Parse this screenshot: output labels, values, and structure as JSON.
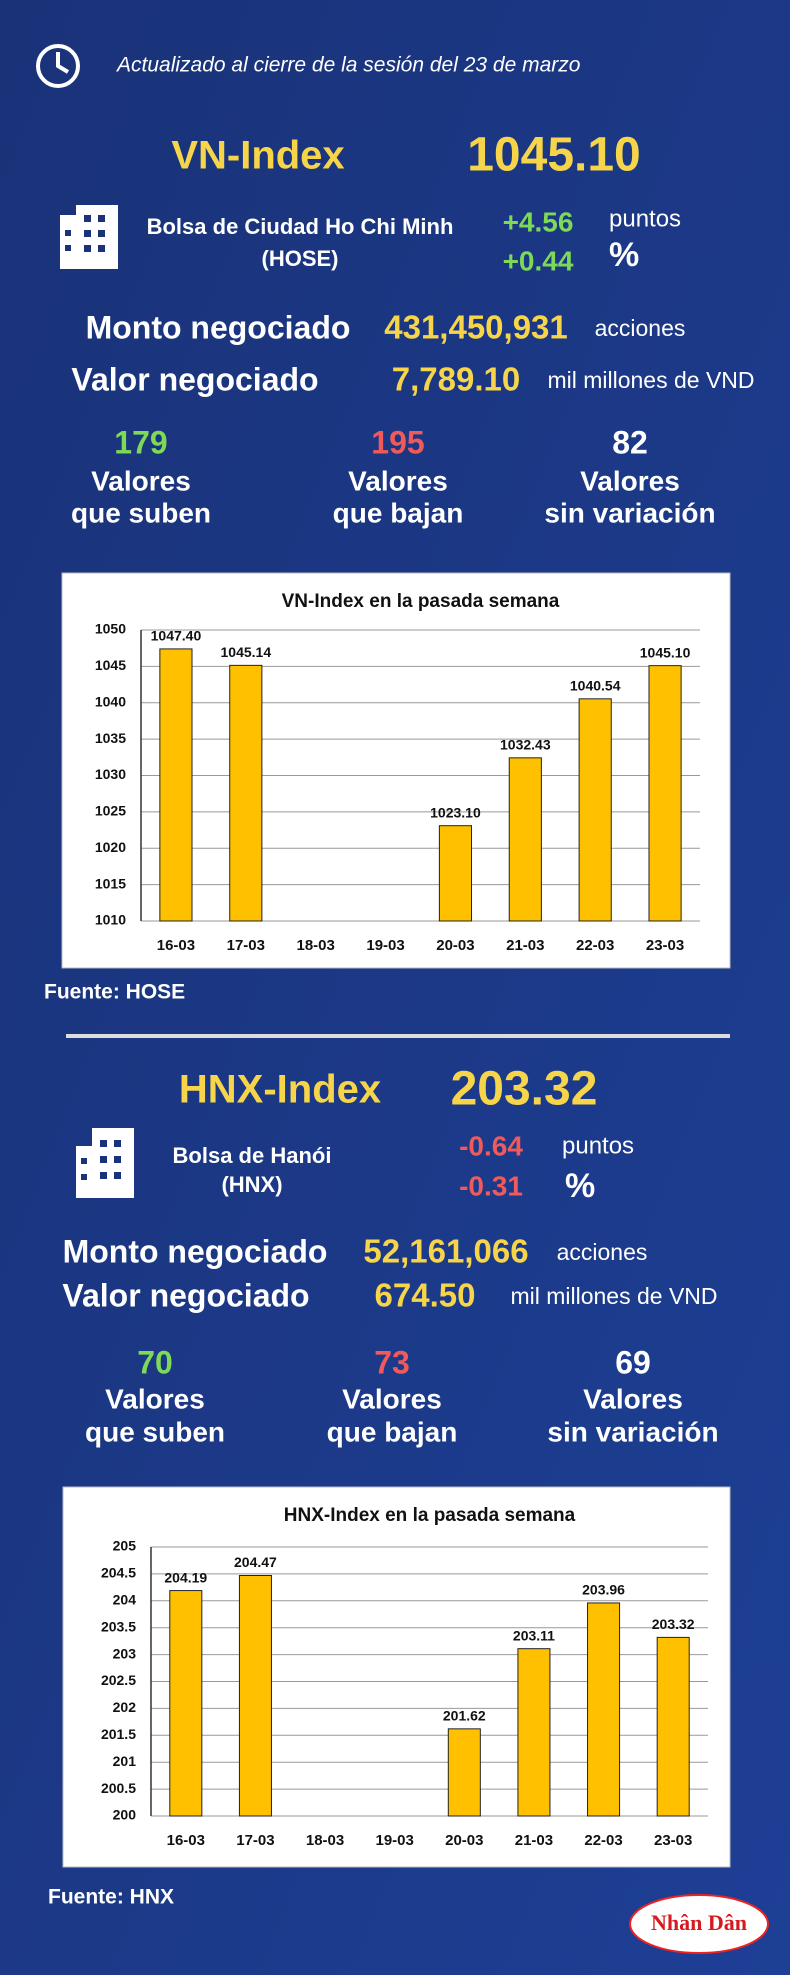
{
  "header": {
    "updated": "Actualizado al cierre de la sesión del 23 de marzo"
  },
  "sections": [
    {
      "index_name": "VN-Index",
      "index_value": "1045.10",
      "exchange": "Bolsa de Ciudad Ho Chi Minh",
      "exchange_code": "(HOSE)",
      "change_points": "+4.56",
      "points_unit": "puntos",
      "change_percent": "+0.44",
      "percent_unit": "%",
      "volume_label": "Monto negociado",
      "volume": "431,450,931",
      "volume_unit": "acciones",
      "value_label": "Valor negociado",
      "value": "7,789.10",
      "value_unit": "mil millones de VND",
      "stats": [
        {
          "count": "179",
          "line1": "Valores",
          "line2": "que suben"
        },
        {
          "count": "195",
          "line1": "Valores",
          "line2": "que bajan"
        },
        {
          "count": "82",
          "line1": "Valores",
          "line2": "sin variación"
        }
      ],
      "source": "Fuente: HOSE"
    },
    {
      "index_name": "HNX-Index",
      "index_value": "203.32",
      "exchange": "Bolsa de Hanói",
      "exchange_code": "(HNX)",
      "change_points": "-0.64",
      "points_unit": "puntos",
      "change_percent": "-0.31",
      "percent_unit": "%",
      "volume_label": "Monto negociado",
      "volume": "52,161,066",
      "volume_unit": "acciones",
      "value_label": "Valor negociado",
      "value": "674.50",
      "value_unit": "mil millones de VND",
      "stats": [
        {
          "count": "70",
          "line1": "Valores",
          "line2": "que suben"
        },
        {
          "count": "73",
          "line1": "Valores",
          "line2": "que bajan"
        },
        {
          "count": "69",
          "line1": "Valores",
          "line2": "sin variación"
        }
      ],
      "source": "Fuente:  HNX"
    }
  ],
  "chart_data": [
    {
      "type": "bar",
      "title": "VN-Index en la pasada semana",
      "categories": [
        "16-03",
        "17-03",
        "18-03",
        "19-03",
        "20-03",
        "21-03",
        "22-03",
        "23-03"
      ],
      "values": [
        1047.4,
        1045.14,
        null,
        null,
        1023.1,
        1032.43,
        1040.54,
        1045.1
      ],
      "value_labels": [
        "1047.40",
        "1045.14",
        null,
        null,
        "1023.10",
        "1032.43",
        "1040.54",
        "1045.10"
      ],
      "color": "#ffc000",
      "ylim": [
        1010,
        1050
      ],
      "yticks": [
        1010,
        1015,
        1020,
        1025,
        1030,
        1035,
        1040,
        1045,
        1050
      ],
      "grid": true
    },
    {
      "type": "bar",
      "title": "HNX-Index en la pasada semana",
      "categories": [
        "16-03",
        "17-03",
        "18-03",
        "19-03",
        "20-03",
        "21-03",
        "22-03",
        "23-03"
      ],
      "values": [
        204.19,
        204.47,
        null,
        null,
        201.62,
        203.11,
        203.96,
        203.32
      ],
      "color": "#ffc000",
      "ylim": [
        200,
        205
      ],
      "yticks": [
        200,
        200.5,
        201,
        201.5,
        202,
        202.5,
        203,
        203.5,
        204,
        204.5,
        205
      ],
      "grid": true
    }
  ],
  "logo": "Nhân Dân"
}
